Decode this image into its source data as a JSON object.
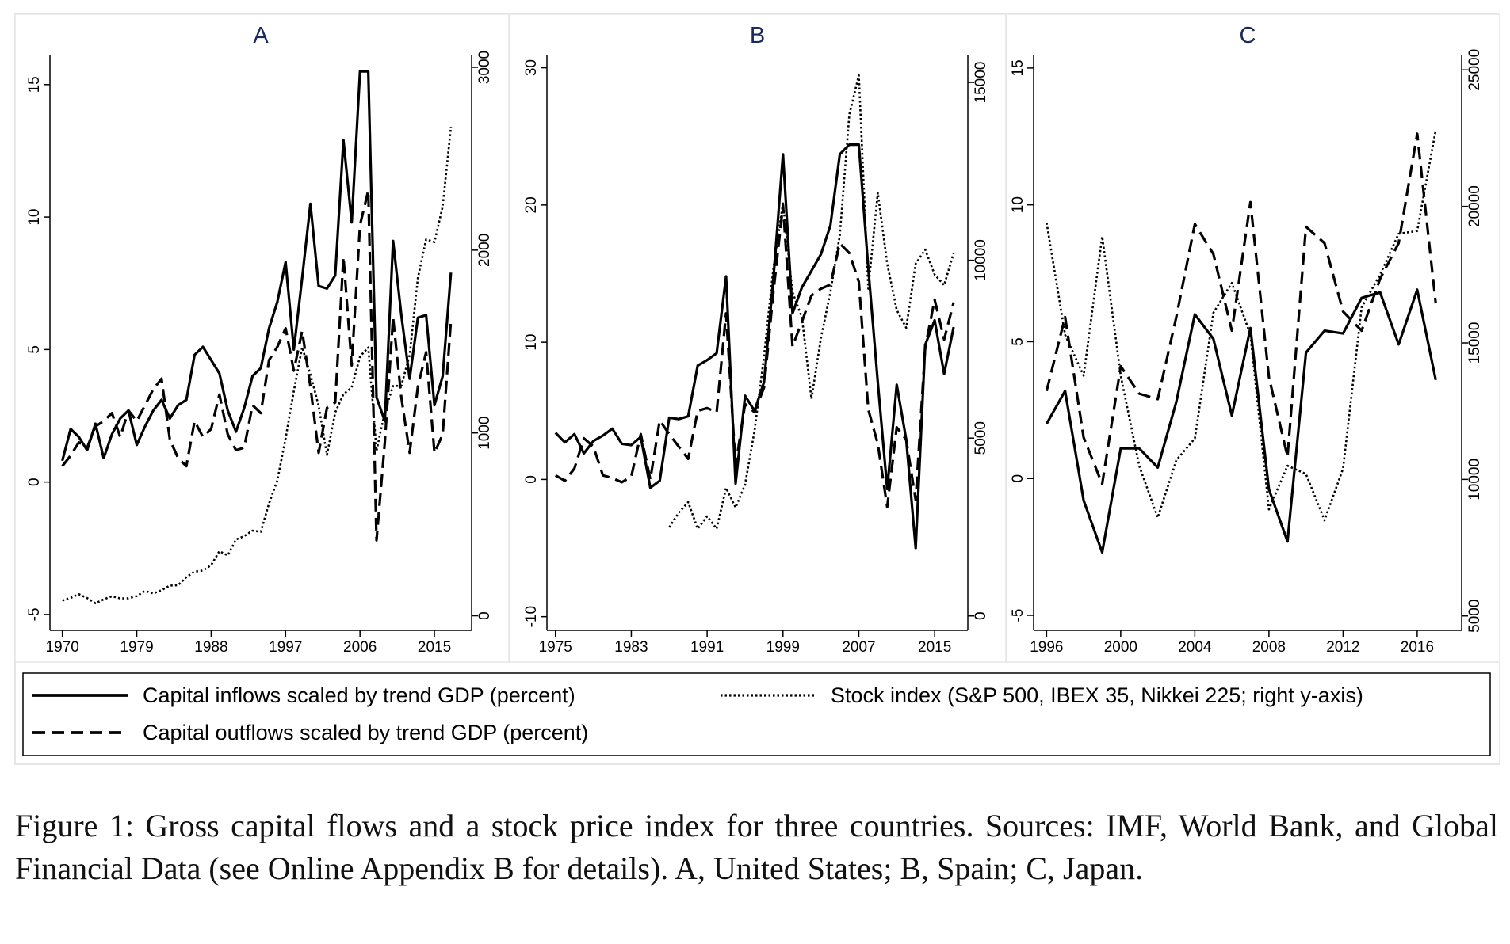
{
  "chart_data": [
    {
      "type": "line",
      "title": "A",
      "color": "#000000",
      "x": [
        1970,
        1971,
        1972,
        1973,
        1974,
        1975,
        1976,
        1977,
        1978,
        1979,
        1980,
        1981,
        1982,
        1983,
        1984,
        1985,
        1986,
        1987,
        1988,
        1989,
        1990,
        1991,
        1992,
        1993,
        1994,
        1995,
        1996,
        1997,
        1998,
        1999,
        2000,
        2001,
        2002,
        2003,
        2004,
        2005,
        2006,
        2007,
        2008,
        2009,
        2010,
        2011,
        2012,
        2013,
        2014,
        2015,
        2016,
        2017
      ],
      "xlim": [
        1968.5,
        2019.5
      ],
      "xticks": [
        1970,
        1979,
        1988,
        1997,
        2006,
        2015
      ],
      "ylim": [
        -5.6,
        16.1
      ],
      "yticks": [
        -5,
        0,
        5,
        10,
        15
      ],
      "y2lim": [
        -80,
        3065
      ],
      "y2ticks": [
        0,
        1000,
        2000,
        3000
      ],
      "series": [
        {
          "style": "solid",
          "values": [
            0.8,
            2.0,
            1.7,
            1.2,
            2.2,
            0.9,
            1.8,
            2.4,
            2.7,
            1.4,
            2.1,
            2.7,
            3.1,
            2.4,
            2.9,
            3.1,
            4.8,
            5.1,
            4.6,
            4.1,
            2.7,
            1.9,
            2.8,
            4.0,
            4.3,
            5.8,
            6.8,
            8.3,
            5.0,
            7.7,
            10.5,
            7.4,
            7.3,
            7.8,
            12.9,
            9.8,
            15.5,
            15.5,
            3.2,
            2.3,
            9.1,
            6.3,
            3.9,
            6.2,
            6.3,
            2.9,
            4.0,
            7.9
          ]
        },
        {
          "style": "dashed",
          "values": [
            0.6,
            1.0,
            1.5,
            1.3,
            2.1,
            2.3,
            2.6,
            1.7,
            2.7,
            2.3,
            2.9,
            3.5,
            3.9,
            1.6,
            0.9,
            0.6,
            2.3,
            1.7,
            2.0,
            3.3,
            1.8,
            1.2,
            1.3,
            2.9,
            2.6,
            4.6,
            5.1,
            5.8,
            4.2,
            5.7,
            3.6,
            1.1,
            2.8,
            3.0,
            8.5,
            4.4,
            9.7,
            11.0,
            -2.2,
            1.5,
            6.2,
            3.2,
            1.1,
            3.6,
            4.9,
            1.1,
            1.8,
            6.1
          ]
        },
        {
          "style": "dotted",
          "axis": "y2",
          "values": [
            83,
            98,
            118,
            97,
            68,
            90,
            107,
            95,
            96,
            108,
            136,
            122,
            140,
            165,
            167,
            211,
            242,
            247,
            277,
            353,
            330,
            417,
            436,
            466,
            459,
            615,
            740,
            970,
            1229,
            1469,
            1320,
            1148,
            880,
            1112,
            1212,
            1248,
            1418,
            1468,
            903,
            1115,
            1257,
            1258,
            1426,
            1848,
            2059,
            2044,
            2239,
            2674
          ]
        }
      ]
    },
    {
      "type": "line",
      "title": "B",
      "color": "#000000",
      "x": [
        1975,
        1976,
        1977,
        1978,
        1979,
        1980,
        1981,
        1982,
        1983,
        1984,
        1985,
        1986,
        1987,
        1988,
        1989,
        1990,
        1991,
        1992,
        1993,
        1994,
        1995,
        1996,
        1997,
        1998,
        1999,
        2000,
        2001,
        2002,
        2003,
        2004,
        2005,
        2006,
        2007,
        2008,
        2009,
        2010,
        2011,
        2012,
        2013,
        2014,
        2015,
        2016,
        2017
      ],
      "xlim": [
        1974.1,
        2018.5
      ],
      "xticks": [
        1975,
        1983,
        1991,
        1999,
        2007,
        2015
      ],
      "ylim": [
        -11.0,
        30.9
      ],
      "yticks": [
        -10,
        0,
        10,
        20,
        30
      ],
      "y2lim": [
        -406,
        15758
      ],
      "y2ticks": [
        0,
        5000,
        10000,
        15000
      ],
      "series": [
        {
          "style": "solid",
          "values": [
            3.4,
            2.7,
            3.3,
            1.9,
            2.8,
            3.2,
            3.7,
            2.6,
            2.5,
            3.1,
            -0.6,
            -0.1,
            4.5,
            4.4,
            4.6,
            8.3,
            8.7,
            9.2,
            14.8,
            -0.3,
            6.1,
            5.0,
            7.1,
            14.7,
            23.7,
            12.1,
            14.0,
            15.2,
            16.4,
            18.5,
            23.7,
            24.4,
            24.4,
            15.4,
            7.1,
            -0.7,
            6.9,
            2.9,
            -5.0,
            9.8,
            11.6,
            7.7,
            11.1
          ]
        },
        {
          "style": "dashed",
          "values": [
            0.3,
            -0.1,
            0.8,
            3.0,
            2.4,
            0.3,
            0.1,
            -0.2,
            0.2,
            3.3,
            0.0,
            4.3,
            3.3,
            2.4,
            1.5,
            5.0,
            5.2,
            4.9,
            12.1,
            1.0,
            5.5,
            4.9,
            6.7,
            13.7,
            20.0,
            9.7,
            11.5,
            13.4,
            13.9,
            14.2,
            17.2,
            16.5,
            14.4,
            5.1,
            2.6,
            -2.0,
            3.8,
            2.9,
            -1.5,
            9.6,
            13.1,
            10.2,
            12.9
          ]
        },
        {
          "style": "dotted",
          "axis": "y2",
          "values": [
            null,
            null,
            null,
            null,
            null,
            null,
            null,
            null,
            null,
            null,
            null,
            null,
            2490,
            2900,
            3200,
            2450,
            2800,
            2450,
            3600,
            3050,
            3700,
            5200,
            7300,
            9800,
            11600,
            9100,
            8400,
            6100,
            7800,
            9100,
            10700,
            14100,
            15200,
            9200,
            11900,
            9900,
            8600,
            8100,
            9900,
            10300,
            9600,
            9300,
            10200
          ]
        }
      ]
    },
    {
      "type": "line",
      "title": "C",
      "color": "#000000",
      "x": [
        1996,
        1997,
        1998,
        1999,
        2000,
        2001,
        2002,
        2003,
        2004,
        2005,
        2006,
        2007,
        2008,
        2009,
        2010,
        2011,
        2012,
        2013,
        2014,
        2015,
        2016,
        2017
      ],
      "xlim": [
        1995.3,
        2018.4
      ],
      "xticks": [
        1996,
        2000,
        2004,
        2008,
        2012,
        2016
      ],
      "ylim": [
        -5.55,
        15.46
      ],
      "yticks": [
        -5,
        0,
        5,
        10,
        15
      ],
      "y2lim": [
        4470,
        25530
      ],
      "y2ticks": [
        5000,
        10000,
        15000,
        20000,
        25000
      ],
      "series": [
        {
          "style": "solid",
          "values": [
            2.0,
            3.2,
            -0.8,
            -2.7,
            1.1,
            1.1,
            0.4,
            2.8,
            6.0,
            5.1,
            2.3,
            5.5,
            -0.4,
            -2.3,
            4.6,
            5.4,
            5.3,
            6.6,
            6.8,
            4.9,
            6.9,
            3.6
          ]
        },
        {
          "style": "dashed",
          "values": [
            3.2,
            5.9,
            1.5,
            -0.2,
            4.1,
            3.1,
            2.9,
            5.9,
            9.3,
            8.2,
            5.4,
            10.1,
            3.7,
            0.8,
            9.2,
            8.6,
            6.1,
            5.4,
            7.3,
            8.6,
            12.6,
            6.4
          ]
        },
        {
          "style": "dotted",
          "axis": "y2",
          "values": [
            19400,
            15300,
            13800,
            18900,
            13800,
            10500,
            8600,
            10700,
            11500,
            16100,
            17200,
            15300,
            8900,
            10500,
            10200,
            8500,
            10400,
            16300,
            17500,
            19000,
            19100,
            22800
          ]
        }
      ]
    }
  ],
  "legend": [
    {
      "label": "Capital inflows scaled by trend GDP (percent)",
      "style": "solid"
    },
    {
      "label": "Capital outflows scaled by trend GDP (percent)",
      "style": "dashed"
    },
    {
      "label": "Stock index (S&P 500, IBEX 35, Nikkei 225; right y-axis)",
      "style": "dotted"
    }
  ],
  "caption": "Figure 1: Gross capital flows and a stock price index for three countries. Sources: IMF, World Bank, and Global Financial Data (see Online Appendix B for details). A, United States; B, Spain; C, Japan."
}
